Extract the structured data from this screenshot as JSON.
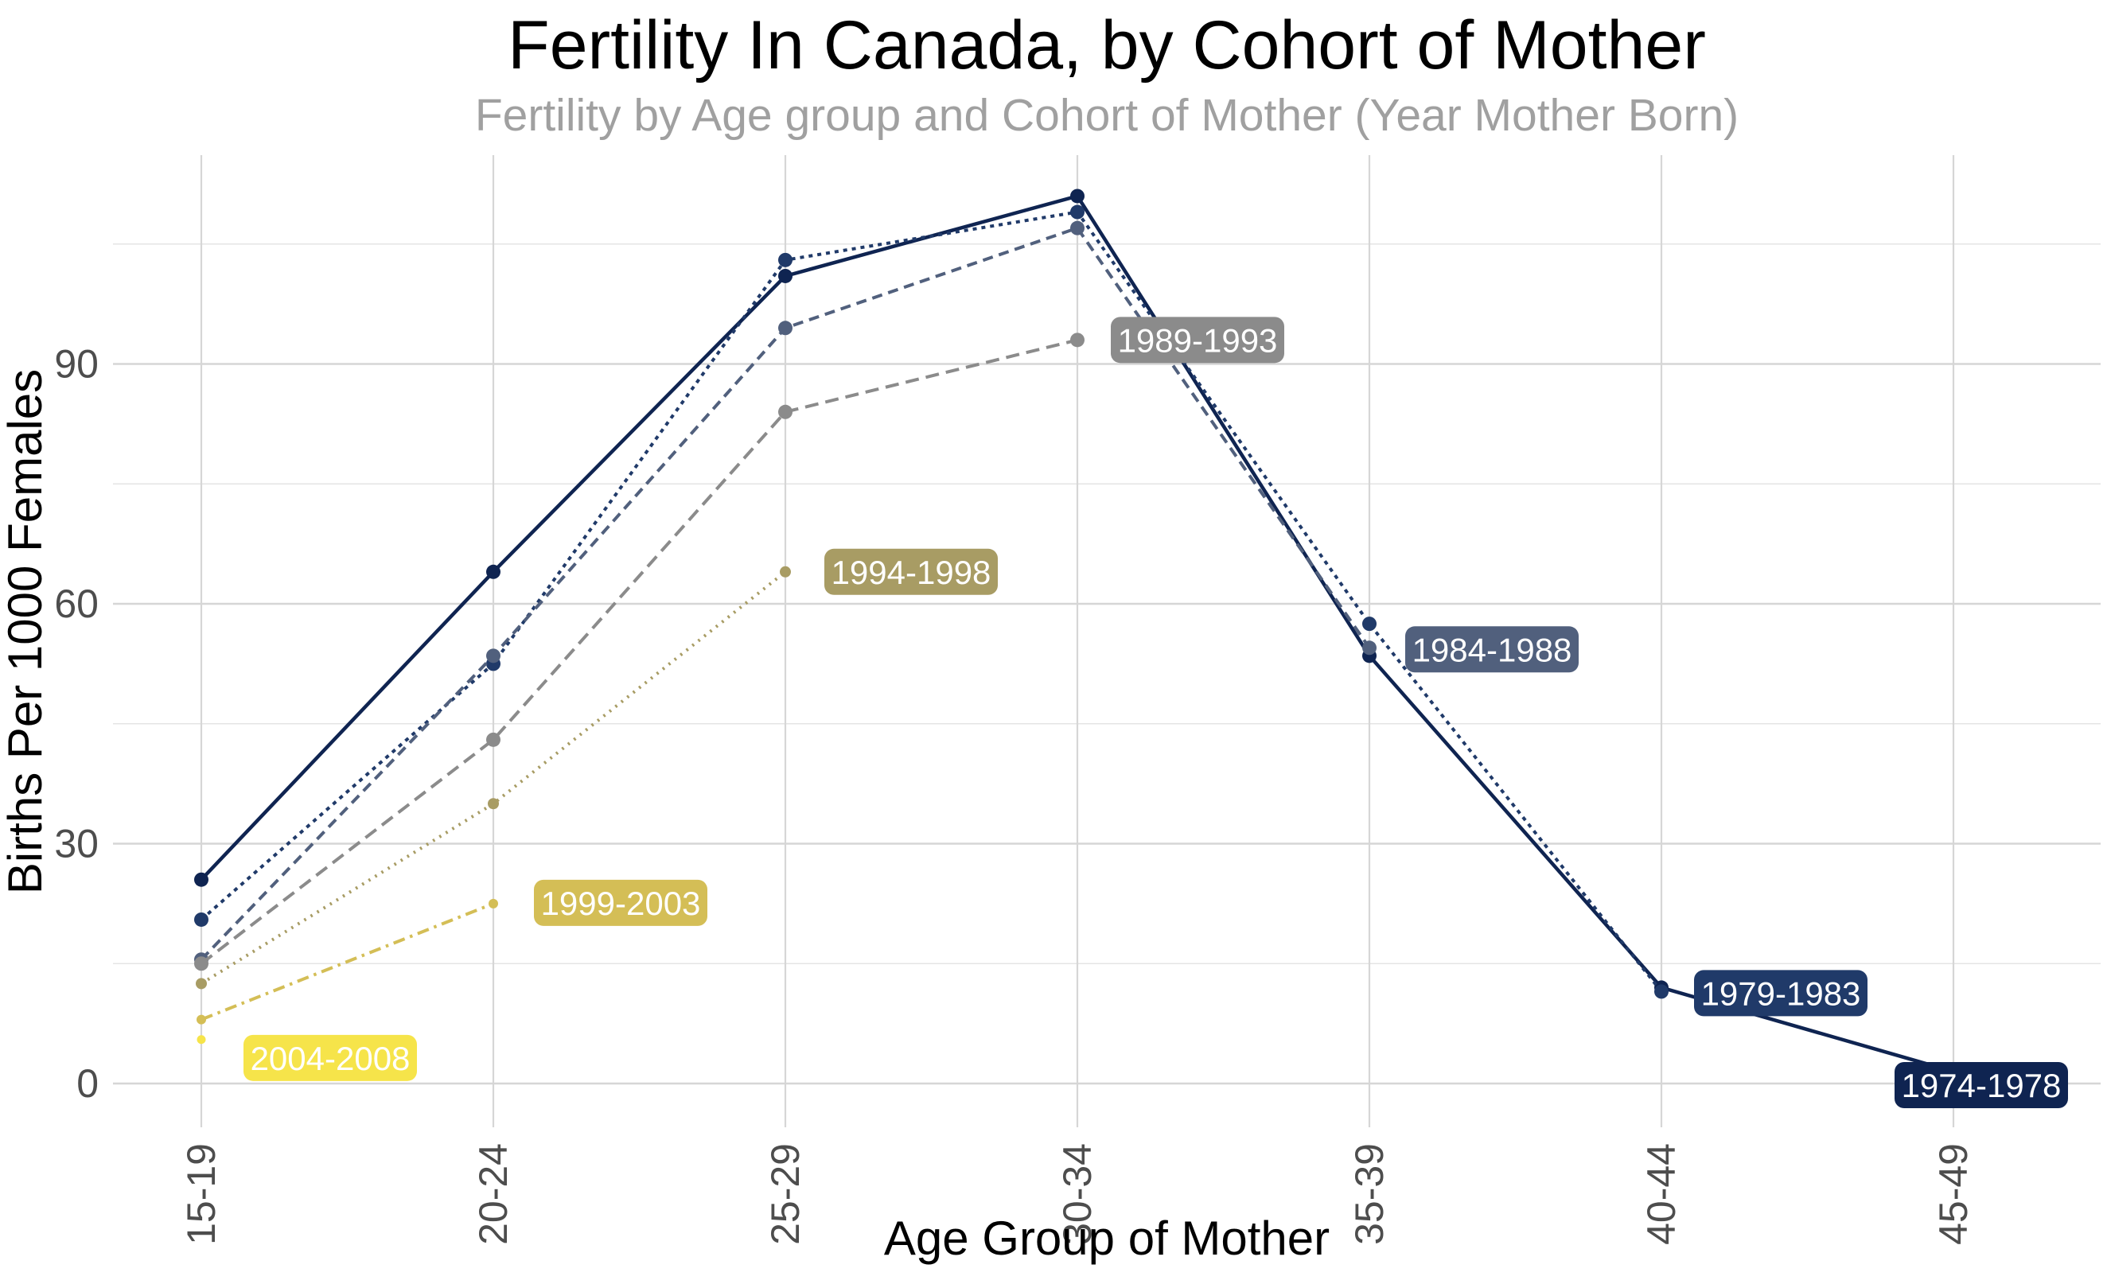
{
  "chart_data": {
    "type": "line",
    "title": "Fertility In Canada, by Cohort of Mother",
    "subtitle": "Fertility by Age group and Cohort of Mother (Year Mother Born)",
    "xlabel": "Age Group of Mother",
    "ylabel": "Births Per 1000 Females",
    "categories": [
      "15-19",
      "20-24",
      "25-29",
      "30-34",
      "35-39",
      "40-44",
      "45-49"
    ],
    "y_ticks": [
      0,
      30,
      60,
      90
    ],
    "y_minor_gridlines": [
      15,
      45,
      75,
      105
    ],
    "ylim": [
      -5,
      116
    ],
    "grid": "on",
    "legend": "inline-labels-at-line-ends",
    "x_tick_rotation_degrees": 90,
    "background": "#FFFFFF",
    "gridline_color": "#D6D6D6",
    "minor_gridline_color": "#E4E4E4",
    "axis_text_color": "#4D4D4D",
    "title_color": "#000000",
    "subtitle_color": "#A0A0A0",
    "label_text_color": "#FFFFFF",
    "series": [
      {
        "name": "1974-1978",
        "color": "#0F2451",
        "linetype": "solid",
        "dash": "",
        "width": 4.5,
        "point_r": 9,
        "values": [
          25.5,
          64,
          101,
          111,
          53.5,
          12,
          1.5
        ],
        "label": {
          "dx": 35,
          "v": -0.2
        }
      },
      {
        "name": "1979-1983",
        "color": "#203A69",
        "linetype": "dotted",
        "dash": "5 6",
        "width": 4,
        "point_r": 9,
        "values": [
          20.5,
          52.5,
          103,
          109,
          57.5,
          11.5,
          null
        ],
        "label": {
          "dx": 150,
          "v": 11.3
        }
      },
      {
        "name": "1984-1988",
        "color": "#51607D",
        "linetype": "dashed",
        "dash": "13 8",
        "width": 4,
        "point_r": 9,
        "values": [
          15.5,
          53.5,
          94.5,
          107,
          54.5,
          null,
          null
        ],
        "label": {
          "dx": 154,
          "v": 54.3
        }
      },
      {
        "name": "1989-1993",
        "color": "#8B8B8B",
        "linetype": "longdash",
        "dash": "17 9",
        "width": 4,
        "point_r": 9,
        "values": [
          15,
          43,
          84,
          93,
          null,
          null,
          null
        ],
        "label": {
          "dx": 151,
          "v": 93
        }
      },
      {
        "name": "1994-1998",
        "color": "#A89C64",
        "linetype": "fine-dotted",
        "dash": "2.5 7",
        "width": 4,
        "point_r": 7,
        "values": [
          12.5,
          35,
          64,
          null,
          null,
          null,
          null
        ],
        "label": {
          "dx": 158,
          "v": 64
        }
      },
      {
        "name": "1999-2003",
        "color": "#D4BE56",
        "linetype": "dash-dot",
        "dash": "15 7 3.5 7",
        "width": 4,
        "point_r": 6,
        "values": [
          8,
          22.5,
          null,
          null,
          null,
          null,
          null
        ],
        "label": {
          "dx": 160,
          "v": 22.6
        }
      },
      {
        "name": "2004-2008",
        "color": "#F6E44A",
        "linetype": "none",
        "dash": "",
        "width": 0,
        "point_r": 5.5,
        "values": [
          5.5,
          null,
          null,
          null,
          null,
          null,
          null
        ],
        "label": {
          "dx": 162,
          "v": 3.2
        }
      }
    ]
  }
}
